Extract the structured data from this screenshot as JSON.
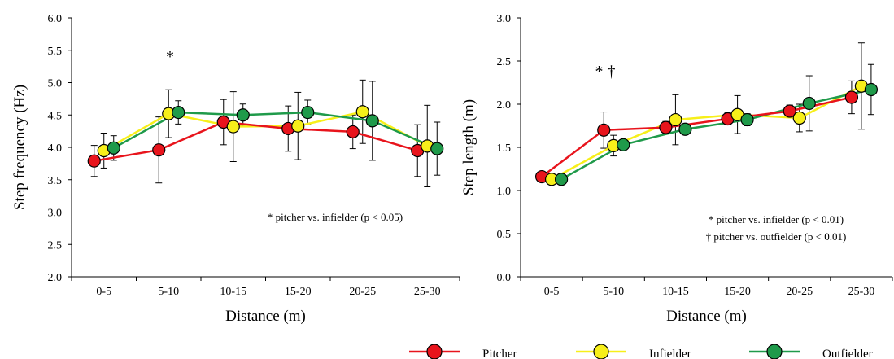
{
  "chart_data": [
    {
      "type": "line",
      "title": "",
      "xlabel": "Distance (m)",
      "ylabel": "Step frequency (Hz)",
      "ylim": [
        2.0,
        6.0
      ],
      "yticks": [
        "2.0",
        "2.5",
        "3.0",
        "3.5",
        "4.0",
        "4.5",
        "5.0",
        "5.5",
        "6.0"
      ],
      "categories": [
        "0-5",
        "5-10",
        "10-15",
        "15-20",
        "20-25",
        "25-30"
      ],
      "series": [
        {
          "name": "Pitcher",
          "color": "#e8141c",
          "values": [
            3.79,
            3.96,
            4.39,
            4.29,
            4.24,
            3.95
          ],
          "errors": [
            0.24,
            0.51,
            0.35,
            0.35,
            0.26,
            0.4
          ]
        },
        {
          "name": "Infielder",
          "color": "#f7ef1a",
          "values": [
            3.95,
            4.52,
            4.32,
            4.33,
            4.55,
            4.02
          ],
          "errors": [
            0.27,
            0.37,
            0.54,
            0.52,
            0.49,
            0.63
          ]
        },
        {
          "name": "Outfielder",
          "color": "#1f9a4a",
          "values": [
            3.99,
            4.54,
            4.5,
            4.54,
            4.41,
            3.98
          ],
          "errors": [
            0.19,
            0.18,
            0.17,
            0.19,
            0.61,
            0.41
          ]
        }
      ],
      "annotations": {
        "significance_mark": "*",
        "notes": [
          "* pitcher vs. infielder (p < 0.05)"
        ]
      }
    },
    {
      "type": "line",
      "title": "",
      "xlabel": "Distance (m)",
      "ylabel": "Step length (m)",
      "ylim": [
        0.0,
        3.0
      ],
      "yticks": [
        "0.0",
        "0.5",
        "1.0",
        "1.5",
        "2.0",
        "2.5",
        "3.0"
      ],
      "categories": [
        "0-5",
        "5-10",
        "10-15",
        "15-20",
        "20-25",
        "25-30"
      ],
      "series": [
        {
          "name": "Pitcher",
          "color": "#e8141c",
          "values": [
            1.16,
            1.7,
            1.73,
            1.83,
            1.92,
            2.08
          ],
          "errors": [
            0.0,
            0.21,
            0.07,
            0.07,
            0.07,
            0.19
          ]
        },
        {
          "name": "Infielder",
          "color": "#f7ef1a",
          "values": [
            1.13,
            1.52,
            1.82,
            1.88,
            1.84,
            2.21
          ],
          "errors": [
            0.0,
            0.12,
            0.29,
            0.22,
            0.16,
            0.5
          ]
        },
        {
          "name": "Outfielder",
          "color": "#1f9a4a",
          "values": [
            1.13,
            1.53,
            1.71,
            1.82,
            2.01,
            2.17
          ],
          "errors": [
            0.0,
            0.06,
            0.05,
            0.07,
            0.32,
            0.29
          ]
        }
      ],
      "annotations": {
        "significance_mark": "* †",
        "notes": [
          "* pitcher vs. infielder (p < 0.01)",
          "† pitcher vs. outfielder (p < 0.01)"
        ]
      }
    }
  ],
  "legend": {
    "placement": "bottom-right",
    "items": [
      {
        "label": "Pitcher",
        "color": "#e8141c"
      },
      {
        "label": "Infielder",
        "color": "#f7ef1a"
      },
      {
        "label": "Outfielder",
        "color": "#1f9a4a"
      }
    ]
  }
}
